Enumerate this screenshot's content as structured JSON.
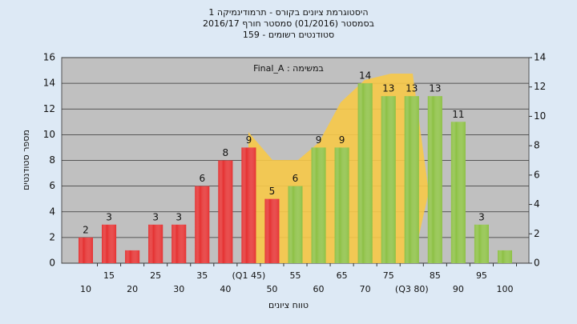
{
  "chart_data": {
    "type": "bar",
    "title": "היסטוגרמת ציונים בקורס - תרמודינמיקה 1",
    "subtitle": "בסמסטר  (01/2016)  סמסטר חורף 2016/17",
    "subtitle2": "סטודנטים רשומים - 159",
    "annotation": "Final_A : במשימה",
    "xlabel": "טווח ציונים",
    "ylabel": "מספר סטודנטים",
    "categories": [
      "10",
      "15",
      "20",
      "25",
      "30",
      "35",
      "40",
      "(Q1 45)",
      "50",
      "55",
      "60",
      "65",
      "70",
      "75",
      "(Q3 80)",
      "85",
      "90",
      "95",
      "100"
    ],
    "values": [
      2,
      3,
      1,
      3,
      3,
      6,
      8,
      9,
      5,
      6,
      9,
      9,
      14,
      13,
      13,
      13,
      11,
      3,
      1
    ],
    "value_labels": [
      "2",
      "3",
      null,
      "3",
      "3",
      "6",
      "8",
      "9",
      "5",
      "6",
      "9",
      "9",
      "14",
      "13",
      "13",
      "13",
      "11",
      "3",
      null
    ],
    "colors": [
      "#e53030",
      "#e53030",
      "#e53030",
      "#e53030",
      "#e53030",
      "#e53030",
      "#e53030",
      "#e53030",
      "#e53030",
      "#8cc043",
      "#8cc043",
      "#8cc043",
      "#8cc043",
      "#8cc043",
      "#8cc043",
      "#8cc043",
      "#8cc043",
      "#8cc043",
      "#8cc043"
    ],
    "ylim": [
      0,
      16
    ],
    "yticks": [
      0,
      2,
      4,
      6,
      8,
      10,
      12,
      14,
      16
    ],
    "y2lim": [
      0,
      14
    ],
    "y2ticks": [
      0,
      2,
      4,
      6,
      8,
      10,
      12,
      14
    ],
    "grid": true
  }
}
